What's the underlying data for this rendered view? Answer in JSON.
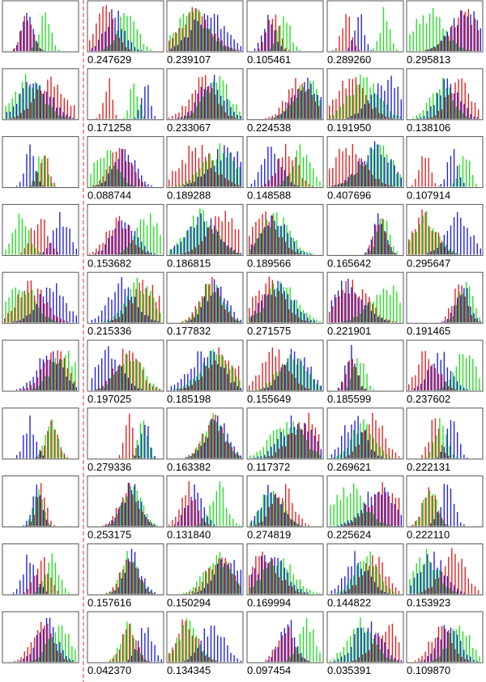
{
  "rows": [
    {
      "scores": [
        "0.247629",
        "0.239107",
        "0.105461",
        "0.289260",
        "0.295813"
      ]
    },
    {
      "scores": [
        "0.171258",
        "0.233067",
        "0.224538",
        "0.191950",
        "0.138106"
      ]
    },
    {
      "scores": [
        "0.088744",
        "0.189288",
        "0.148588",
        "0.407696",
        "0.107914"
      ]
    },
    {
      "scores": [
        "0.153682",
        "0.186815",
        "0.189566",
        "0.165642",
        "0.295647"
      ]
    },
    {
      "scores": [
        "0.215336",
        "0.177832",
        "0.271575",
        "0.221901",
        "0.191465"
      ]
    },
    {
      "scores": [
        "0.197025",
        "0.185198",
        "0.155649",
        "0.185599",
        "0.237602"
      ]
    },
    {
      "scores": [
        "0.279336",
        "0.163382",
        "0.117372",
        "0.269621",
        "0.222131"
      ]
    },
    {
      "scores": [
        "0.253175",
        "0.131840",
        "0.274819",
        "0.225624",
        "0.222110"
      ]
    },
    {
      "scores": [
        "0.157616",
        "0.150294",
        "0.169994",
        "0.144822",
        "0.153923"
      ]
    },
    {
      "scores": [
        "0.042370",
        "0.134345",
        "0.097454",
        "0.035391",
        "0.109870"
      ]
    }
  ]
}
